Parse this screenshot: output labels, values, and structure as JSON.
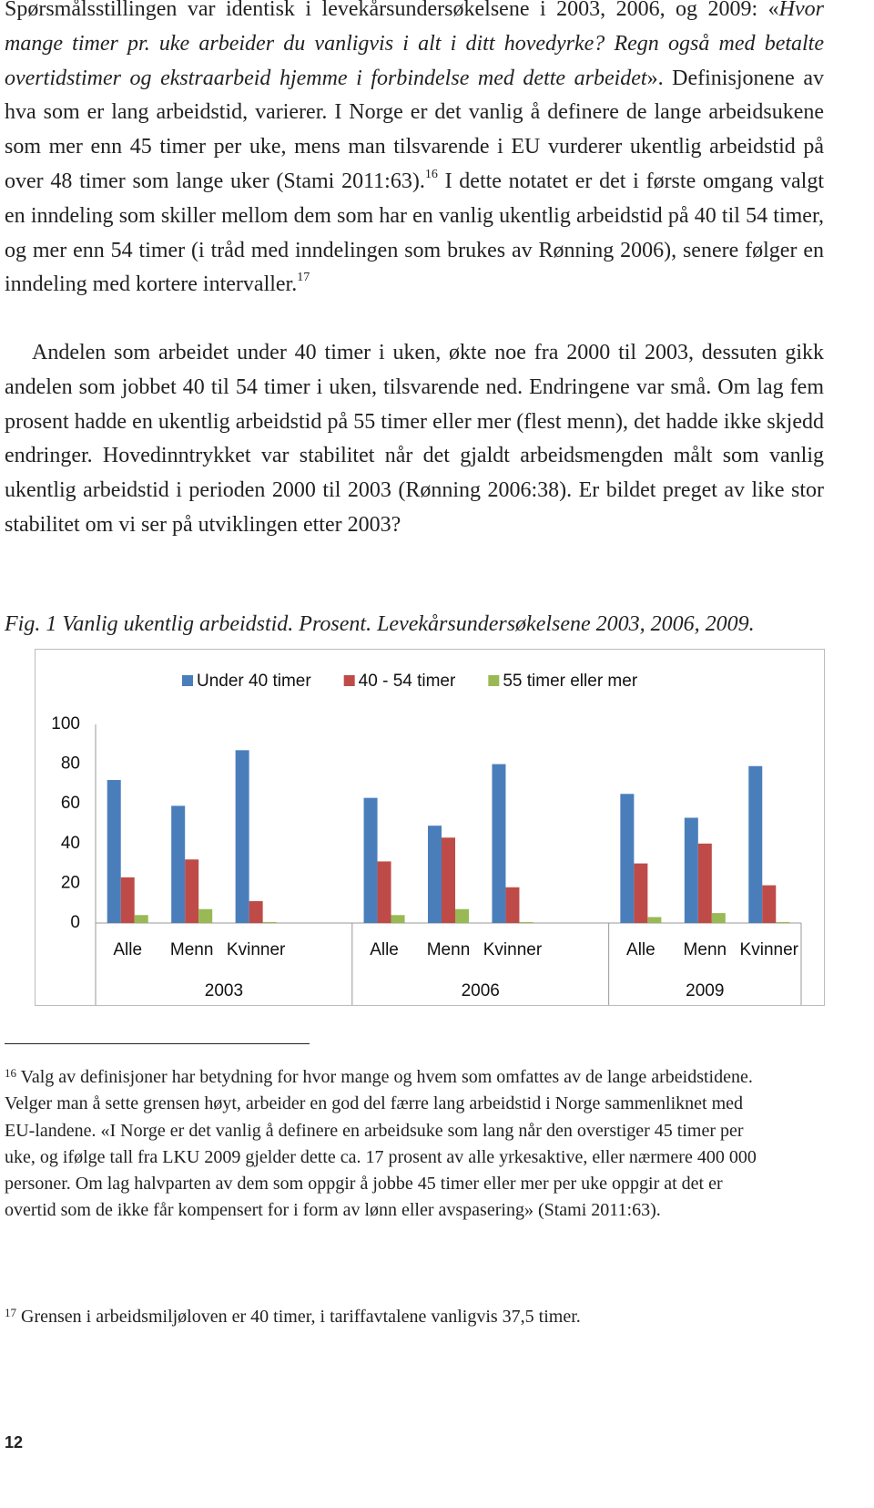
{
  "body": {
    "paragraphs": [
      {
        "segments": [
          {
            "text": "Spørsmålsstillingen var identisk i levekårsundersøkelsene i 2003, 2006, og 2009: «"
          },
          {
            "text": "Hvor mange timer pr. uke arbeider du vanligvis i alt i ditt hovedyrke? Regn også med betalte overtidstimer og ekstraarbeid hjemme i forbindelse med dette arbeidet",
            "style": "italic"
          },
          {
            "text": "». Definisjonene av hva som er lang arbeidstid, varierer. I Norge er det vanlig å definere de lange arbeidsukene som mer enn 45 timer per uke, mens man tilsvarende i EU vurderer ukentlig arbeidstid på over 48 timer som lange uker (Stami 2011:63)."
          },
          {
            "text": "16",
            "style": "superscript"
          },
          {
            "text": " I dette notatet er det i første omgang valgt en inndeling som skiller mellom dem som har en vanlig ukentlig arbeidstid på 40 til 54 timer, og mer enn 54 timer (i tråd med inndelingen som brukes av Rønning 2006), senere følger en inndeling med kortere intervaller."
          },
          {
            "text": "17",
            "style": "superscript"
          }
        ]
      },
      {
        "segments": [
          {
            "text": "Andelen som arbeidet under 40 timer i uken, økte noe fra 2000 til 2003, dessuten gikk andelen som jobbet 40 til 54 timer i uken, tilsvarende ned. Endringene var små. Om lag fem prosent hadde en ukentlig arbeidstid på 55 timer eller mer (flest menn), det hadde ikke skjedd endringer. Hovedinntrykket var stabilitet når det gjaldt arbeidsmengden målt som vanlig ukentlig arbeidstid i perioden 2000 til 2003 (Rønning 2006:38). Er bildet preget av like stor stabilitet om vi ser på utviklingen etter 2003?"
          }
        ]
      }
    ]
  },
  "figure": {
    "caption": "Fig. 1 Vanlig ukentlig arbeidstid. Prosent. Levekårsundersøkelsene 2003, 2006, 2009."
  },
  "chart_data": {
    "type": "bar",
    "groups": [
      {
        "name": "2003",
        "categories": [
          "Alle",
          "Menn",
          "Kvinner",
          null
        ]
      },
      {
        "name": "2006",
        "categories": [
          "Alle",
          "Menn",
          "Kvinner",
          null
        ]
      },
      {
        "name": "2009",
        "categories": [
          "Alle",
          "Menn",
          "Kvinner"
        ]
      }
    ],
    "series": [
      {
        "name": "Under 40 timer",
        "color": "#4a7ebb",
        "values": [
          72,
          59,
          87,
          null,
          63,
          49,
          80,
          null,
          65,
          53,
          79
        ]
      },
      {
        "name": "40 - 54 timer",
        "color": "#be4b48",
        "values": [
          23,
          32,
          11,
          null,
          31,
          43,
          18,
          null,
          30,
          40,
          19
        ]
      },
      {
        "name": "55 timer eller mer",
        "color": "#98b954",
        "values": [
          4,
          7,
          0.5,
          null,
          4,
          7,
          0.5,
          null,
          3,
          5,
          0.5
        ]
      }
    ],
    "ylim": [
      0,
      100
    ],
    "yticks": [
      0,
      20,
      40,
      60,
      80,
      100
    ],
    "grid": false,
    "legend": "top"
  },
  "footnotes": [
    {
      "number": "16",
      "text": "Valg av definisjoner har betydning for hvor mange og hvem som omfattes av de lange arbeidstidene. Velger man å sette grensen høyt, arbeider en god del færre lang arbeidstid i Norge sammenliknet med EU-landene. «I Norge er det vanlig å definere en arbeidsuke som lang når den overstiger 45 timer per uke, og ifølge tall fra LKU 2009 gjelder dette ca. 17 prosent av alle yrkesaktive, eller nærmere 400 000 personer. Om lag halvparten av dem som oppgir å jobbe 45 timer eller mer per uke oppgir at det er overtid som de ikke får kompensert for i form av lønn eller avspasering» (Stami 2011:63)."
    },
    {
      "number": "17",
      "text": "Grensen i arbeidsmiljøloven er 40 timer, i tariffavtalene vanligvis 37,5 timer."
    }
  ],
  "page_number": "12"
}
